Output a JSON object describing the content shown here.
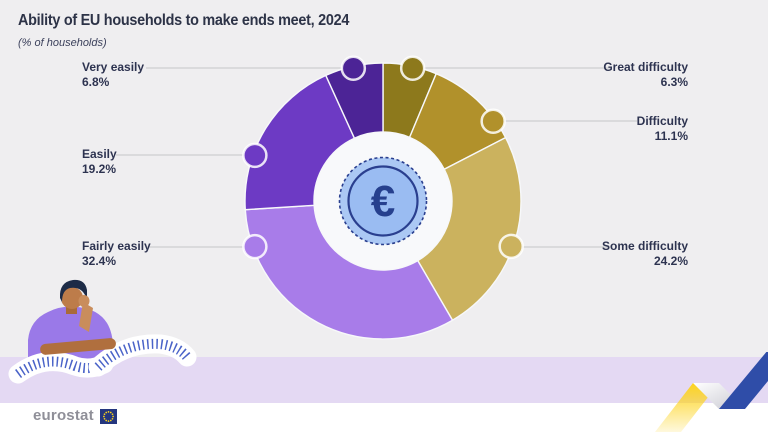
{
  "page": {
    "background": "#efeef0",
    "band_color": "#e4d9f3",
    "footer_background": "#ffffff",
    "leader_line_color": "#c6c6c8",
    "label_text_color": "#2d3350"
  },
  "header": {
    "title": "Ability of EU households to make ends meet, 2024",
    "subtitle": "(% of households)"
  },
  "chart_data": {
    "type": "pie",
    "subtype": "donut",
    "title": "Ability of EU households to make ends meet, 2024",
    "unit": "% of households",
    "start_angle_deg": 0,
    "direction": "clockwise",
    "legend_position": "callout-labels",
    "center_icon": "euro-coin",
    "slices": [
      {
        "label": "Great difficulty",
        "value": 6.3,
        "color": "#8d791c"
      },
      {
        "label": "Difficulty",
        "value": 11.1,
        "color": "#b1912b"
      },
      {
        "label": "Some difficulty",
        "value": 24.2,
        "color": "#cbb25e"
      },
      {
        "label": "Fairly easily",
        "value": 32.4,
        "color": "#a87ce9"
      },
      {
        "label": "Easily",
        "value": 19.2,
        "color": "#6d3ac4"
      },
      {
        "label": "Very easily",
        "value": 6.8,
        "color": "#4c2496"
      }
    ]
  },
  "coin": {
    "symbol": "€",
    "outer_color": "#abc8f4",
    "inner_color": "#9abcf2",
    "ring_color": "#2a3f8f",
    "symbol_color": "#26408e"
  },
  "decor": {
    "person_illustration": {
      "shirt_color": "#9a79e8",
      "skin_color": "#bd7c4a",
      "hair_color": "#1d2b47",
      "receipt_color": "#ffffff",
      "receipt_tick_color": "#4a63c8"
    },
    "zigzag": {
      "yellow": "#fdd31c",
      "gray": "#d6d6de",
      "blue": "#2f4da8"
    },
    "eu_flag": {
      "field": "#24367e",
      "stars": "#ffd617"
    }
  },
  "footer": {
    "brand": "eurostat"
  }
}
